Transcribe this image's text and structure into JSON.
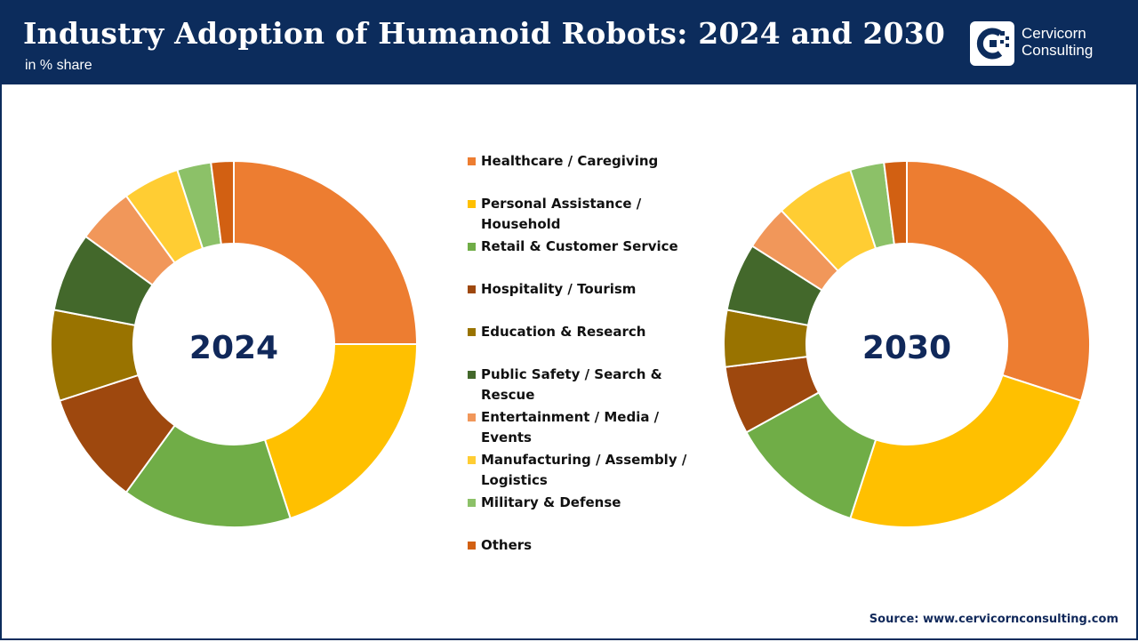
{
  "header": {
    "title": "Industry Adoption of Humanoid Robots: 2024 and 2030",
    "subtitle": "in % share"
  },
  "logo": {
    "line1": "Cervicorn",
    "line2": "Consulting"
  },
  "source": "Source: www.cervicornconsulting.com",
  "colors": {
    "header_bg": "#0c2c5c",
    "center_label": "#10285a"
  },
  "chart_data": [
    {
      "type": "pie",
      "variant": "donut",
      "center_label": "2024",
      "categories": [
        "Healthcare / Caregiving",
        "Personal Assistance / Household",
        "Retail & Customer Service",
        "Hospitality / Tourism",
        "Education & Research",
        "Public Safety / Search & Rescue",
        "Entertainment / Media / Events",
        "Manufacturing / Assembly / Logistics",
        "Military & Defense",
        "Others"
      ],
      "values": [
        25,
        20,
        15,
        10,
        8,
        7,
        5,
        5,
        3,
        2
      ],
      "colors": [
        "#ed7d31",
        "#ffc000",
        "#70ad47",
        "#9e480e",
        "#997300",
        "#43682b",
        "#f1975a",
        "#ffcd33",
        "#8cc168",
        "#d26012"
      ]
    },
    {
      "type": "pie",
      "variant": "donut",
      "center_label": "2030",
      "categories": [
        "Healthcare / Caregiving",
        "Personal Assistance / Household",
        "Retail & Customer Service",
        "Hospitality / Tourism",
        "Education & Research",
        "Public Safety / Search & Rescue",
        "Entertainment / Media / Events",
        "Manufacturing / Assembly / Logistics",
        "Military & Defense",
        "Others"
      ],
      "values": [
        30,
        25,
        12,
        6,
        5,
        6,
        4,
        7,
        3,
        2
      ],
      "colors": [
        "#ed7d31",
        "#ffc000",
        "#70ad47",
        "#9e480e",
        "#997300",
        "#43682b",
        "#f1975a",
        "#ffcd33",
        "#8cc168",
        "#d26012"
      ]
    }
  ],
  "legend": {
    "items": [
      {
        "label": "Healthcare / Caregiving",
        "color": "#ed7d31"
      },
      {
        "label": "Personal Assistance / Household",
        "color": "#ffc000"
      },
      {
        "label": "Retail & Customer Service",
        "color": "#70ad47"
      },
      {
        "label": "Hospitality / Tourism",
        "color": "#9e480e"
      },
      {
        "label": "Education & Research",
        "color": "#997300"
      },
      {
        "label": "Public Safety / Search & Rescue",
        "color": "#43682b"
      },
      {
        "label": "Entertainment / Media / Events",
        "color": "#f1975a"
      },
      {
        "label": "Manufacturing / Assembly / Logistics",
        "color": "#ffcd33"
      },
      {
        "label": "Military & Defense",
        "color": "#8cc168"
      },
      {
        "label": "Others",
        "color": "#d26012"
      }
    ]
  }
}
